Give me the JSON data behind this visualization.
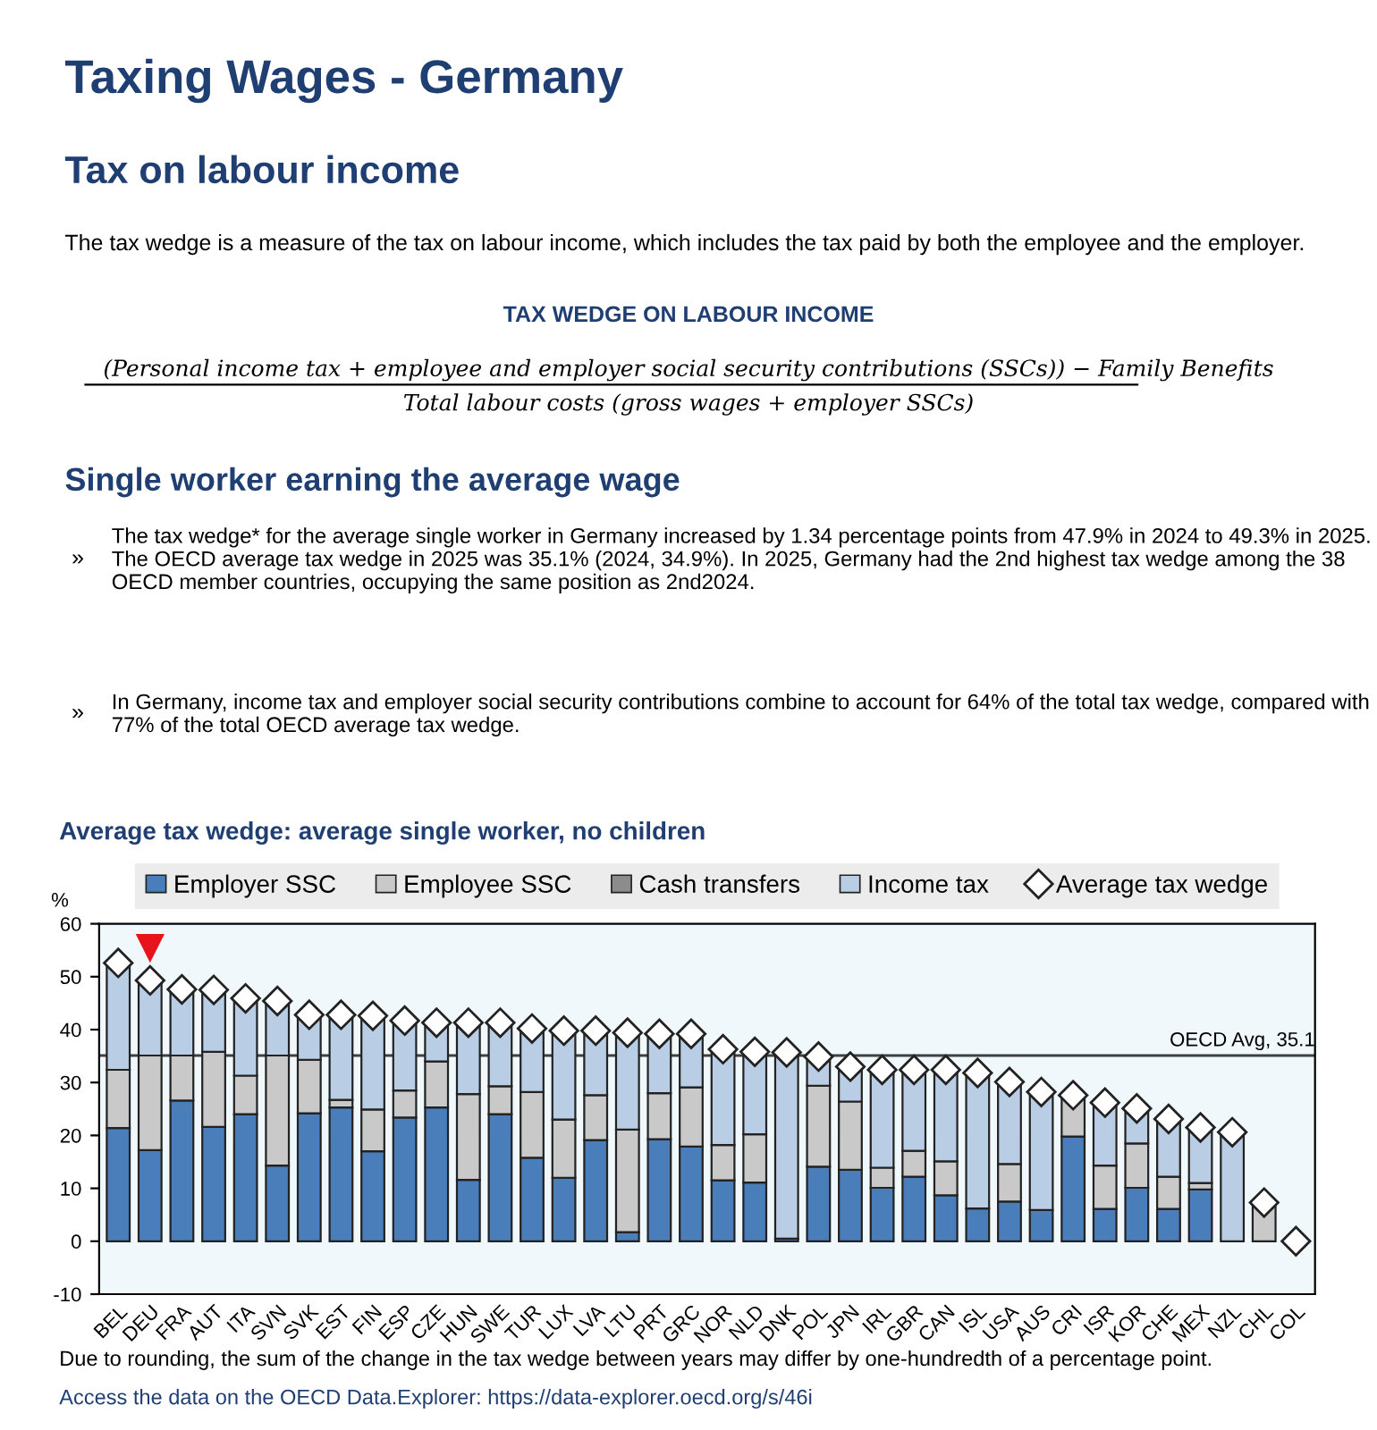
{
  "chart_data": {
    "type": "bar",
    "stacked": true,
    "title": "Taxing Wages - Germany",
    "subtitle": "Tax on labour income",
    "annotations": [
      "The tax wedge is a measure of the tax on labour income, which includes the tax paid by both the employee and the employer.",
      "TAX WEDGE ON LABOUR INCOME",
      "(Personal income tax + employee and employer social security contributions (SSCs)) − Family Benefits",
      "Total labour costs (gross wages + employer SSCs)",
      "Single worker earning the average wage",
      "»",
      "The tax wedge* for the average single worker in Germany increased by 1.34 percentage points from 47.9% in 2024 to 49.3% in 2025. The OECD average tax wedge in 2025 was 35.1% (2024, 34.9%). In 2025, Germany had the 2nd highest tax wedge among the 38 OECD member countries, occupying the same position as 2nd2024.",
      "»",
      "In Germany, income tax and employer social security contributions combine to account for 64% of the total tax wedge, compared with 77% of the total OECD average tax wedge.",
      "Average tax wedge: average single worker, no children",
      "Due to rounding, the sum of the change in the tax wedge between years may differ by one-hundredth of a percentage point.",
      "Access the data on the OECD Data.Explorer: https://data-explorer.oecd.org/s/46i"
    ],
    "ylabel": "%",
    "categories": [
      "BEL",
      "DEU",
      "FRA",
      "AUT",
      "ITA",
      "SVN",
      "SVK",
      "EST",
      "FIN",
      "ESP",
      "CZE",
      "HUN",
      "SWE",
      "TUR",
      "LUX",
      "LVA",
      "LTU",
      "PRT",
      "GRC",
      "NOR",
      "NLD",
      "DNK",
      "POL",
      "JPN",
      "IRL",
      "GBR",
      "CAN",
      "ISL",
      "USA",
      "AUS",
      "CRI",
      "ISR",
      "KOR",
      "CHE",
      "MEX",
      "NZL",
      "CHL",
      "COL"
    ],
    "series": [
      {
        "name": "Employer SSC",
        "color": "#4a7ebb",
        "values": [
          21.4,
          17.2,
          26.6,
          21.6,
          24.0,
          14.3,
          24.2,
          25.3,
          17.0,
          23.4,
          25.3,
          11.6,
          24.0,
          15.8,
          12.0,
          19.1,
          1.7,
          19.3,
          17.9,
          11.5,
          11.1,
          0.5,
          14.1,
          13.5,
          10.1,
          12.2,
          8.7,
          6.2,
          7.5,
          5.9,
          19.8,
          6.1,
          10.1,
          6.1,
          9.8,
          0,
          0,
          0
        ]
      },
      {
        "name": "Employee SSC",
        "color": "#c9c9c9",
        "values": [
          11.0,
          17.9,
          8.5,
          14.2,
          7.3,
          20.8,
          10.1,
          1.4,
          7.9,
          5.1,
          8.7,
          16.2,
          5.3,
          12.4,
          11.0,
          8.5,
          19.4,
          8.7,
          11.2,
          6.7,
          9.1,
          0,
          15.3,
          12.9,
          3.8,
          4.9,
          6.4,
          0,
          7.1,
          0,
          7.8,
          8.2,
          8.4,
          6.1,
          1.2,
          0,
          7.3,
          0
        ]
      },
      {
        "name": "Cash transfers",
        "color": "#8c8c8c",
        "values": [
          0,
          0,
          0,
          0,
          0,
          0,
          0,
          0,
          0,
          0,
          0,
          0,
          0,
          0,
          0,
          0,
          0,
          0,
          0,
          0,
          0,
          0,
          0,
          0,
          0,
          0,
          0,
          0,
          0,
          0,
          0,
          0,
          0,
          0,
          0,
          0,
          0,
          0
        ]
      },
      {
        "name": "Income tax",
        "color": "#b9cde5",
        "values": [
          20.2,
          14.2,
          12.5,
          11.7,
          14.6,
          10.3,
          8.5,
          16.1,
          17.7,
          13.2,
          7.3,
          13.5,
          12.0,
          12.0,
          16.8,
          12.2,
          18.3,
          11.2,
          10.1,
          18.1,
          15.6,
          35.2,
          5.5,
          6.6,
          18.5,
          15.3,
          17.3,
          25.6,
          15.5,
          22.3,
          0,
          11.9,
          6.6,
          10.9,
          10.5,
          20.6,
          0,
          0
        ]
      },
      {
        "name": "Average tax wedge",
        "type": "scatter",
        "marker": "diamond",
        "color": "#ffffff",
        "values": [
          52.6,
          49.3,
          47.6,
          47.5,
          45.9,
          45.4,
          42.8,
          42.8,
          42.6,
          41.7,
          41.3,
          41.3,
          41.3,
          40.2,
          39.8,
          39.8,
          39.4,
          39.2,
          39.2,
          36.3,
          35.8,
          35.7,
          34.9,
          33.0,
          32.4,
          32.4,
          32.4,
          31.8,
          30.1,
          28.2,
          27.6,
          26.2,
          25.1,
          23.1,
          21.5,
          20.6,
          7.3,
          0
        ]
      }
    ],
    "ylim": [
      -10,
      60
    ],
    "yticks": [
      -10,
      0,
      10,
      20,
      30,
      40,
      50,
      60
    ],
    "ref_lines": [
      {
        "axis": "y",
        "value": 35.1,
        "label": "OECD Avg, 35.1",
        "color": "#404040"
      }
    ],
    "legend": "top"
  }
}
